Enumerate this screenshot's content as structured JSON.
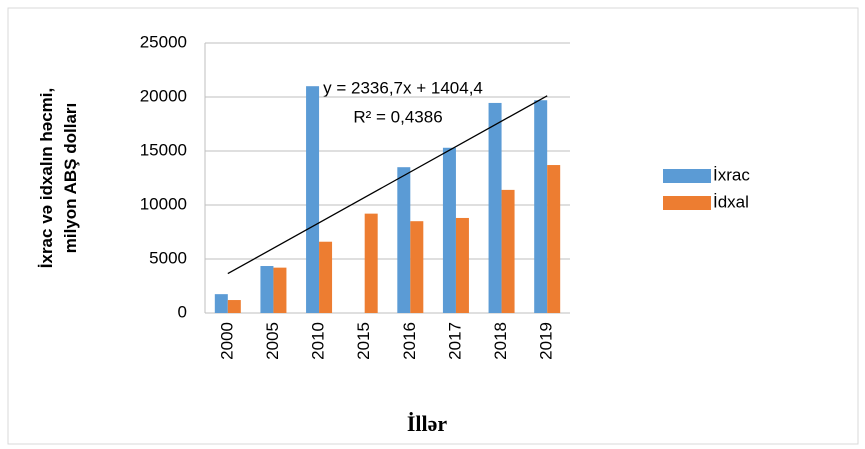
{
  "chart_data": {
    "type": "bar",
    "ylabel": "İxrac və idxalın həcmi, milyon ABŞ dolları",
    "xlabel": "İllər",
    "annotations": [
      "y = 2336,7x + 1404,4",
      "R² = 0,4386"
    ],
    "categories": [
      "2000",
      "2005",
      "2010",
      "2015",
      "2016",
      "2017",
      "2018",
      "2019"
    ],
    "series": [
      {
        "name": "İxrac",
        "color": "#5b9bd5",
        "values": [
          1745,
          4350,
          21000,
          0,
          13500,
          15300,
          19450,
          19700
        ]
      },
      {
        "name": "İdxal",
        "color": "#ed7d31",
        "values": [
          1200,
          4200,
          6600,
          9200,
          8500,
          8800,
          11400,
          13700
        ]
      }
    ],
    "ylim": [
      0,
      25000
    ],
    "yticks": [
      0,
      5000,
      10000,
      15000,
      20000,
      25000
    ],
    "grid": true,
    "legend": "right"
  }
}
